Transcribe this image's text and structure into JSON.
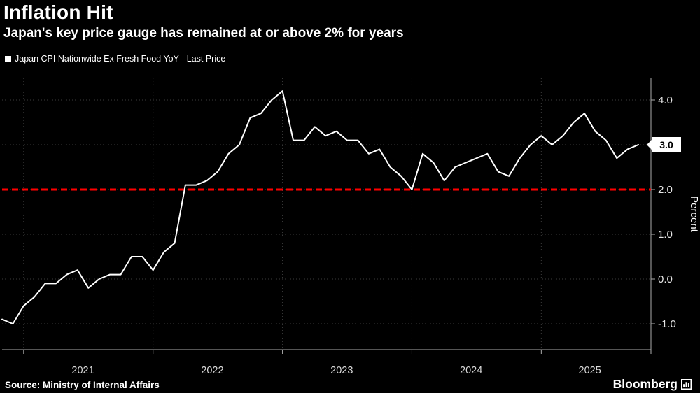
{
  "header": {
    "title": "Inflation Hit",
    "subtitle": "Japan's key price gauge has remained at or above 2% for years"
  },
  "legend": {
    "label": "Japan CPI Nationwide Ex Fresh Food YoY - Last Price"
  },
  "footer": {
    "source": "Source: Ministry of Internal Affairs",
    "brand": "Bloomberg"
  },
  "chart_data": {
    "type": "line",
    "title": "Inflation Hit",
    "subtitle": "Japan's key price gauge has remained at or above 2% for years",
    "ylabel": "Percent",
    "yticks": [
      4.0,
      3.0,
      2.0,
      1.0,
      0.0,
      -1.0
    ],
    "ylim": [
      -1.6,
      4.5
    ],
    "grid": true,
    "legend_position": "top-left",
    "x_year_labels": [
      "2021",
      "2022",
      "2023",
      "2024",
      "2025"
    ],
    "reference_line": {
      "value": 2.0,
      "color": "#ff0000",
      "style": "dashed"
    },
    "last_price": {
      "value": 3.0,
      "label": "3.0"
    },
    "series": [
      {
        "name": "Japan CPI Nationwide Ex Fresh Food YoY - Last Price",
        "color": "#ffffff",
        "x": [
          "2020-11",
          "2020-12",
          "2021-01",
          "2021-02",
          "2021-03",
          "2021-04",
          "2021-05",
          "2021-06",
          "2021-07",
          "2021-08",
          "2021-09",
          "2021-10",
          "2021-11",
          "2021-12",
          "2022-01",
          "2022-02",
          "2022-03",
          "2022-04",
          "2022-05",
          "2022-06",
          "2022-07",
          "2022-08",
          "2022-09",
          "2022-10",
          "2022-11",
          "2022-12",
          "2023-01",
          "2023-02",
          "2023-03",
          "2023-04",
          "2023-05",
          "2023-06",
          "2023-07",
          "2023-08",
          "2023-09",
          "2023-10",
          "2023-11",
          "2023-12",
          "2024-01",
          "2024-02",
          "2024-03",
          "2024-04",
          "2024-05",
          "2024-06",
          "2024-07",
          "2024-08",
          "2024-09",
          "2024-10",
          "2024-11",
          "2024-12",
          "2025-01",
          "2025-02",
          "2025-03",
          "2025-04",
          "2025-05",
          "2025-06",
          "2025-07",
          "2025-08",
          "2025-09",
          "2025-10"
        ],
        "values": [
          -0.9,
          -1.0,
          -0.6,
          -0.4,
          -0.1,
          -0.1,
          0.1,
          0.2,
          -0.2,
          0.0,
          0.1,
          0.1,
          0.5,
          0.5,
          0.2,
          0.6,
          0.8,
          2.1,
          2.1,
          2.2,
          2.4,
          2.8,
          3.0,
          3.6,
          3.7,
          4.0,
          4.2,
          3.1,
          3.1,
          3.4,
          3.2,
          3.3,
          3.1,
          3.1,
          2.8,
          2.9,
          2.5,
          2.3,
          2.0,
          2.8,
          2.6,
          2.2,
          2.5,
          2.6,
          2.7,
          2.8,
          2.4,
          2.3,
          2.7,
          3.0,
          3.2,
          3.0,
          3.2,
          3.5,
          3.7,
          3.3,
          3.1,
          2.7,
          2.9,
          3.0
        ]
      }
    ]
  }
}
